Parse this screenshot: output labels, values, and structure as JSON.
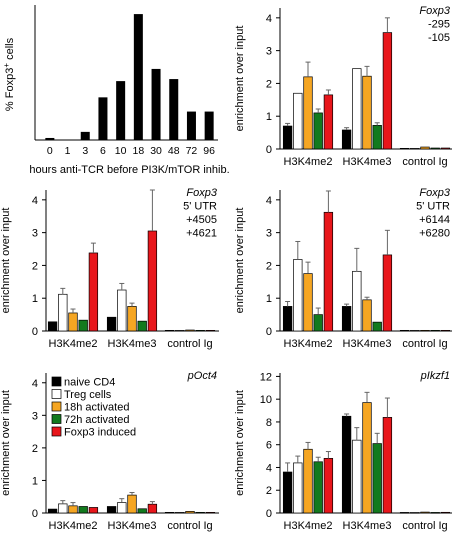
{
  "colors": {
    "naive": "#000000",
    "treg": "#ffffff",
    "act18": "#f5a623",
    "act72": "#127a1e",
    "foxp3": "#e8161b",
    "bar_single": "#000000"
  },
  "chart_data": [
    {
      "id": "A",
      "type": "bar",
      "categories": [
        "0",
        "1",
        "3",
        "6",
        "10",
        "18",
        "30",
        "48",
        "72",
        "96"
      ],
      "values": [
        1,
        0,
        4,
        21,
        29,
        62,
        35,
        30,
        14,
        14
      ],
      "ylabel": "% Foxp3+ cells",
      "ylabel_main": "% Foxp3",
      "ylabel_sup": "+",
      "ylabel_tail": " cells",
      "xlabel": "hours anti-TCR before PI3K/mTOR inhib.",
      "ylim": [
        0,
        65
      ],
      "yticks": [],
      "grid": false
    },
    {
      "id": "B",
      "type": "bar",
      "annotation": [
        "Foxp3",
        "-295",
        "-105"
      ],
      "groups": [
        "H3K4me2",
        "H3K4me3",
        "control Ig"
      ],
      "series": [
        {
          "name": "naive CD4",
          "values": [
            0.7,
            0.58,
            0.02
          ],
          "errors": [
            0.08,
            0.07,
            0.01
          ]
        },
        {
          "name": "Treg cells",
          "values": [
            1.7,
            2.45,
            0.02
          ],
          "errors": [
            0.06,
            0.05,
            0.01
          ]
        },
        {
          "name": "18h activated",
          "values": [
            2.2,
            2.22,
            0.06
          ],
          "errors": [
            0.45,
            0.3,
            0.02
          ]
        },
        {
          "name": "72h activated",
          "values": [
            1.1,
            0.72,
            0.03
          ],
          "errors": [
            0.12,
            0.08,
            0.01
          ]
        },
        {
          "name": "Foxp3 induced",
          "values": [
            1.65,
            3.55,
            0.03
          ],
          "errors": [
            0.15,
            0.45,
            0.01
          ]
        }
      ],
      "ylabel": "enrichment over input",
      "ylim": [
        0,
        4.3
      ],
      "yticks": [
        0,
        1,
        2,
        3,
        4
      ]
    },
    {
      "id": "C",
      "type": "bar",
      "annotation": [
        "Foxp3",
        "5' UTR",
        "+4505",
        "+4621"
      ],
      "groups": [
        "H3K4me2",
        "H3K4me3",
        "control Ig"
      ],
      "series": [
        {
          "name": "naive CD4",
          "values": [
            0.28,
            0.42,
            0.02
          ],
          "errors": [
            0.05,
            0.06,
            0.01
          ]
        },
        {
          "name": "Treg cells",
          "values": [
            1.12,
            1.25,
            0.02
          ],
          "errors": [
            0.18,
            0.2,
            0.01
          ]
        },
        {
          "name": "18h activated",
          "values": [
            0.55,
            0.75,
            0.03
          ],
          "errors": [
            0.12,
            0.1,
            0.01
          ]
        },
        {
          "name": "72h activated",
          "values": [
            0.33,
            0.3,
            0.02
          ],
          "errors": [
            0.05,
            0.04,
            0.01
          ]
        },
        {
          "name": "Foxp3 induced",
          "values": [
            2.38,
            3.05,
            0.02
          ],
          "errors": [
            0.3,
            1.25,
            0.01
          ]
        }
      ],
      "ylabel": "enrichment over input",
      "ylim": [
        0,
        4.3
      ],
      "yticks": [
        0,
        1,
        2,
        3,
        4
      ]
    },
    {
      "id": "D",
      "type": "bar",
      "annotation": [
        "Foxp3",
        "5' UTR",
        "+6144",
        "+6280"
      ],
      "groups": [
        "H3K4me2",
        "H3K4me3",
        "control Ig"
      ],
      "series": [
        {
          "name": "naive CD4",
          "values": [
            0.75,
            0.75,
            0.02
          ],
          "errors": [
            0.15,
            0.07,
            0.01
          ]
        },
        {
          "name": "Treg cells",
          "values": [
            2.18,
            1.82,
            0.02
          ],
          "errors": [
            0.55,
            0.7,
            0.01
          ]
        },
        {
          "name": "18h activated",
          "values": [
            1.75,
            0.95,
            0.02
          ],
          "errors": [
            0.35,
            0.08,
            0.01
          ]
        },
        {
          "name": "72h activated",
          "values": [
            0.5,
            0.27,
            0.02
          ],
          "errors": [
            0.2,
            0.03,
            0.01
          ]
        },
        {
          "name": "Foxp3 induced",
          "values": [
            3.62,
            2.32,
            0.02
          ],
          "errors": [
            0.65,
            0.75,
            0.01
          ]
        }
      ],
      "ylabel": "enrichment over input",
      "ylim": [
        0,
        4.3
      ],
      "yticks": [
        0,
        1,
        2,
        3,
        4
      ]
    },
    {
      "id": "E",
      "type": "bar",
      "annotation": [
        "pOct4"
      ],
      "groups": [
        "H3K4me2",
        "H3K4me3",
        "control Ig"
      ],
      "series": [
        {
          "name": "naive CD4",
          "values": [
            0.12,
            0.2,
            0.02
          ],
          "errors": [
            0.05,
            0.05,
            0.01
          ]
        },
        {
          "name": "Treg cells",
          "values": [
            0.28,
            0.32,
            0.02
          ],
          "errors": [
            0.1,
            0.12,
            0.01
          ]
        },
        {
          "name": "18h activated",
          "values": [
            0.22,
            0.55,
            0.05
          ],
          "errors": [
            0.1,
            0.08,
            0.02
          ]
        },
        {
          "name": "72h activated",
          "values": [
            0.2,
            0.13,
            0.02
          ],
          "errors": [
            0.05,
            0.03,
            0.01
          ]
        },
        {
          "name": "Foxp3 induced",
          "values": [
            0.17,
            0.27,
            0.02
          ],
          "errors": [
            0.06,
            0.08,
            0.01
          ]
        }
      ],
      "ylabel": "enrichment over input",
      "ylim": [
        0,
        4.3
      ],
      "yticks": [
        0,
        1,
        2,
        3,
        4
      ],
      "legend": {
        "position": "top-left",
        "entries": [
          "naive CD4",
          "Treg cells",
          "18h activated",
          "72h activated",
          "Foxp3 induced"
        ]
      }
    },
    {
      "id": "F",
      "type": "bar",
      "annotation": [
        "pIkzf1"
      ],
      "groups": [
        "H3K4me2",
        "H3K4me3",
        "control Ig"
      ],
      "series": [
        {
          "name": "naive CD4",
          "values": [
            3.6,
            8.5,
            0.05
          ],
          "errors": [
            0.8,
            0.2,
            0.02
          ]
        },
        {
          "name": "Treg cells",
          "values": [
            4.4,
            6.4,
            0.05
          ],
          "errors": [
            0.6,
            1.1,
            0.02
          ]
        },
        {
          "name": "18h activated",
          "values": [
            5.6,
            9.7,
            0.08
          ],
          "errors": [
            0.6,
            0.9,
            0.03
          ]
        },
        {
          "name": "72h activated",
          "values": [
            4.5,
            6.1,
            0.05
          ],
          "errors": [
            0.4,
            0.9,
            0.02
          ]
        },
        {
          "name": "Foxp3 induced",
          "values": [
            4.8,
            8.4,
            0.06
          ],
          "errors": [
            0.6,
            1.7,
            0.02
          ]
        }
      ],
      "ylabel": "enrichment over input",
      "ylim": [
        0,
        12.3
      ],
      "yticks": [
        0,
        2,
        4,
        6,
        8,
        10,
        12
      ]
    }
  ]
}
